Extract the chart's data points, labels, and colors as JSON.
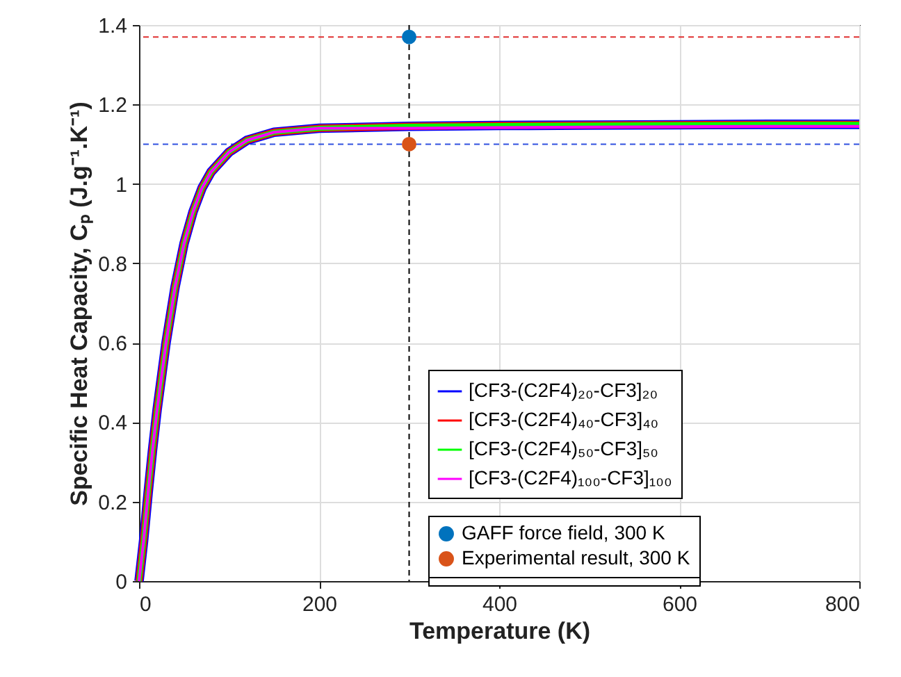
{
  "chart_data": {
    "type": "line",
    "xlabel": "Temperature (K)",
    "ylabel": "Specific Heat Capacity, Cₚ (J.g⁻¹.K⁻¹)",
    "xlim": [
      0,
      800
    ],
    "xticks": [
      0,
      200,
      400,
      600,
      800
    ],
    "ylim": [
      0,
      1.4
    ],
    "yticks": [
      0,
      0.2,
      0.4,
      0.6,
      0.8,
      1,
      1.2,
      1.4
    ],
    "grid": true,
    "legend": "bottom right",
    "marker": "none",
    "line_style": "solid",
    "x": [
      0,
      5,
      10,
      15,
      20,
      30,
      40,
      50,
      60,
      70,
      80,
      100,
      120,
      150,
      200,
      300,
      400,
      500,
      600,
      700,
      800
    ],
    "series": [
      {
        "name": "[CF3-(C2F4)₂₀-CF3]₂₀",
        "color": "#0000ff",
        "values": [
          0,
          0.1,
          0.22,
          0.33,
          0.43,
          0.6,
          0.74,
          0.85,
          0.93,
          0.99,
          1.03,
          1.08,
          1.11,
          1.13,
          1.14,
          1.145,
          1.147,
          1.148,
          1.149,
          1.15,
          1.15
        ]
      },
      {
        "name": "[CF3-(C2F4)₄₀-CF3]₄₀",
        "color": "#ff0000",
        "values": [
          0,
          0.1,
          0.22,
          0.33,
          0.43,
          0.6,
          0.74,
          0.85,
          0.93,
          0.99,
          1.03,
          1.08,
          1.11,
          1.13,
          1.14,
          1.145,
          1.147,
          1.148,
          1.149,
          1.15,
          1.15
        ]
      },
      {
        "name": "[CF3-(C2F4)₅₀-CF3]₅₀",
        "color": "#00ff00",
        "values": [
          0,
          0.1,
          0.22,
          0.33,
          0.43,
          0.6,
          0.74,
          0.85,
          0.93,
          0.99,
          1.03,
          1.08,
          1.11,
          1.13,
          1.14,
          1.145,
          1.147,
          1.148,
          1.149,
          1.15,
          1.15
        ]
      },
      {
        "name": "[CF3-(C2F4)₁₀₀-CF3]₁₀₀",
        "color": "#ff00ff",
        "values": [
          0,
          0.1,
          0.22,
          0.33,
          0.43,
          0.6,
          0.74,
          0.85,
          0.93,
          0.99,
          1.03,
          1.08,
          1.11,
          1.13,
          1.14,
          1.14,
          1.142,
          1.143,
          1.144,
          1.145,
          1.145
        ]
      },
      {
        "name": "GAFF force field, 300 K",
        "type": "scatter",
        "marker": "circle",
        "color": "#0072bd",
        "x": [
          300
        ],
        "values": [
          1.37
        ]
      },
      {
        "name": "Experimental result, 300 K",
        "type": "scatter",
        "marker": "circle",
        "color": "#d95319",
        "x": [
          300
        ],
        "values": [
          1.1
        ]
      }
    ],
    "ref_lines": [
      {
        "axis": "y",
        "value": 1.37,
        "color": "#e03030",
        "line_style": "dashed"
      },
      {
        "axis": "y",
        "value": 1.1,
        "color": "#3050e0",
        "line_style": "dashed"
      },
      {
        "axis": "x",
        "value": 300,
        "color": "#000000",
        "line_style": "dashed"
      }
    ]
  }
}
